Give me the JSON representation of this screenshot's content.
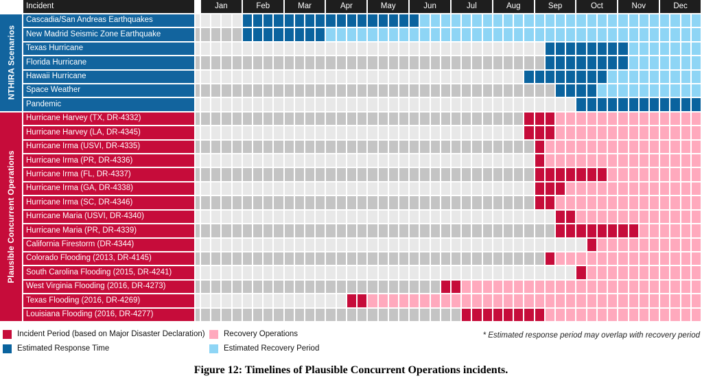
{
  "colors": {
    "header_bg": "#1e1e1e",
    "section_blue": "#12649e",
    "section_red": "#c60c3a",
    "est_response": "#0a639e",
    "est_recovery": "#8ed5f5",
    "incident": "#c60c3a",
    "recovery_ops": "#ffa9bd",
    "grid_empty_light": "#e8e8e8",
    "grid_empty_dark": "#c4c4c4"
  },
  "header": {
    "incident_label": "Incident",
    "months": [
      "Jan",
      "Feb",
      "Mar",
      "Apr",
      "May",
      "Jun",
      "Jul",
      "Aug",
      "Sep",
      "Oct",
      "Nov",
      "Dec"
    ]
  },
  "sections": [
    {
      "id": "nthira",
      "label": "NTHIRA Scenarios",
      "color": "section_blue"
    },
    {
      "id": "pco",
      "label": "Plausible Concurrent Operations",
      "color": "section_red"
    }
  ],
  "chart_data": {
    "type": "gantt-timeline",
    "unit": "weeks",
    "weeks_per_month": 4,
    "total_weeks": 48,
    "segment_types": {
      "empty": "no activity (striped gray background)",
      "est_response": "Estimated Response Time",
      "est_recovery": "Estimated Recovery Period",
      "incident": "Incident Period (based on Major Disaster Declaration)",
      "recovery_ops": "Recovery Operations"
    },
    "rows": [
      {
        "label": "Cascadia/San Andreas Earthquakes",
        "section": "nthira",
        "segments": [
          [
            "empty",
            4
          ],
          [
            "est_response",
            17
          ],
          [
            "est_recovery",
            27
          ]
        ]
      },
      {
        "label": "New Madrid Seismic Zone Earthquake",
        "section": "nthira",
        "segments": [
          [
            "empty",
            4
          ],
          [
            "est_response",
            8
          ],
          [
            "est_recovery",
            36
          ]
        ]
      },
      {
        "label": "Texas Hurricane",
        "section": "nthira",
        "segments": [
          [
            "empty",
            33
          ],
          [
            "est_response",
            8
          ],
          [
            "est_recovery",
            7
          ]
        ]
      },
      {
        "label": "Florida Hurricane",
        "section": "nthira",
        "segments": [
          [
            "empty",
            33
          ],
          [
            "est_response",
            8
          ],
          [
            "est_recovery",
            7
          ]
        ]
      },
      {
        "label": "Hawaii Hurricane",
        "section": "nthira",
        "segments": [
          [
            "empty",
            31
          ],
          [
            "est_response",
            8
          ],
          [
            "est_recovery",
            9
          ]
        ]
      },
      {
        "label": "Space Weather",
        "section": "nthira",
        "segments": [
          [
            "empty",
            34
          ],
          [
            "est_response",
            4
          ],
          [
            "est_recovery",
            10
          ]
        ]
      },
      {
        "label": "Pandemic",
        "section": "nthira",
        "segments": [
          [
            "empty",
            36
          ],
          [
            "est_response",
            12
          ]
        ]
      },
      {
        "label": "Hurricane Harvey (TX, DR-4332)",
        "section": "pco",
        "segments": [
          [
            "empty",
            31
          ],
          [
            "incident",
            3
          ],
          [
            "recovery_ops",
            14
          ]
        ]
      },
      {
        "label": "Hurricane Harvey (LA, DR-4345)",
        "section": "pco",
        "segments": [
          [
            "empty",
            31
          ],
          [
            "incident",
            3
          ],
          [
            "recovery_ops",
            14
          ]
        ]
      },
      {
        "label": "Hurricane Irma (USVI, DR-4335)",
        "section": "pco",
        "segments": [
          [
            "empty",
            32
          ],
          [
            "incident",
            1
          ],
          [
            "recovery_ops",
            15
          ]
        ]
      },
      {
        "label": "Hurricane Irma (PR, DR-4336)",
        "section": "pco",
        "segments": [
          [
            "empty",
            32
          ],
          [
            "incident",
            1
          ],
          [
            "recovery_ops",
            15
          ]
        ]
      },
      {
        "label": "Hurricane Irma (FL, DR-4337)",
        "section": "pco",
        "segments": [
          [
            "empty",
            32
          ],
          [
            "incident",
            7
          ],
          [
            "recovery_ops",
            9
          ]
        ]
      },
      {
        "label": "Hurricane Irma (GA, DR-4338)",
        "section": "pco",
        "segments": [
          [
            "empty",
            32
          ],
          [
            "incident",
            3
          ],
          [
            "recovery_ops",
            13
          ]
        ]
      },
      {
        "label": "Hurricane Irma (SC, DR-4346)",
        "section": "pco",
        "segments": [
          [
            "empty",
            32
          ],
          [
            "incident",
            2
          ],
          [
            "recovery_ops",
            14
          ]
        ]
      },
      {
        "label": "Hurricane Maria (USVI, DR-4340)",
        "section": "pco",
        "segments": [
          [
            "empty",
            34
          ],
          [
            "incident",
            2
          ],
          [
            "recovery_ops",
            12
          ]
        ]
      },
      {
        "label": "Hurricane Maria (PR, DR-4339)",
        "section": "pco",
        "segments": [
          [
            "empty",
            34
          ],
          [
            "incident",
            8
          ],
          [
            "recovery_ops",
            6
          ]
        ]
      },
      {
        "label": "California Firestorm (DR-4344)",
        "section": "pco",
        "segments": [
          [
            "empty",
            37
          ],
          [
            "incident",
            1
          ],
          [
            "recovery_ops",
            10
          ]
        ]
      },
      {
        "label": "Colorado Flooding (2013, DR-4145)",
        "section": "pco",
        "segments": [
          [
            "empty",
            33
          ],
          [
            "incident",
            1
          ],
          [
            "recovery_ops",
            14
          ]
        ]
      },
      {
        "label": "South Carolina Flooding (2015, DR-4241)",
        "section": "pco",
        "segments": [
          [
            "empty",
            36
          ],
          [
            "incident",
            1
          ],
          [
            "recovery_ops",
            11
          ]
        ]
      },
      {
        "label": "West Virginia Flooding (2016, DR-4273)",
        "section": "pco",
        "segments": [
          [
            "empty",
            23
          ],
          [
            "incident",
            2
          ],
          [
            "recovery_ops",
            23
          ]
        ]
      },
      {
        "label": "Texas Flooding (2016, DR-4269)",
        "section": "pco",
        "segments": [
          [
            "empty",
            14
          ],
          [
            "incident",
            2
          ],
          [
            "recovery_ops",
            32
          ]
        ]
      },
      {
        "label": "Louisiana Flooding (2016, DR-4277)",
        "section": "pco",
        "segments": [
          [
            "empty",
            25
          ],
          [
            "incident",
            8
          ],
          [
            "recovery_ops",
            15
          ]
        ]
      }
    ]
  },
  "legend": {
    "items": [
      {
        "key": "incident",
        "label": "Incident Period (based on Major Disaster Declaration)"
      },
      {
        "key": "recovery_ops",
        "label": "Recovery Operations"
      },
      {
        "key": "est_response",
        "label": "Estimated Response Time"
      },
      {
        "key": "est_recovery",
        "label": "Estimated Recovery Period"
      }
    ],
    "note": "* Estimated response period may overlap with recovery period"
  },
  "caption": "Figure 12: Timelines of Plausible Concurrent Operations incidents."
}
